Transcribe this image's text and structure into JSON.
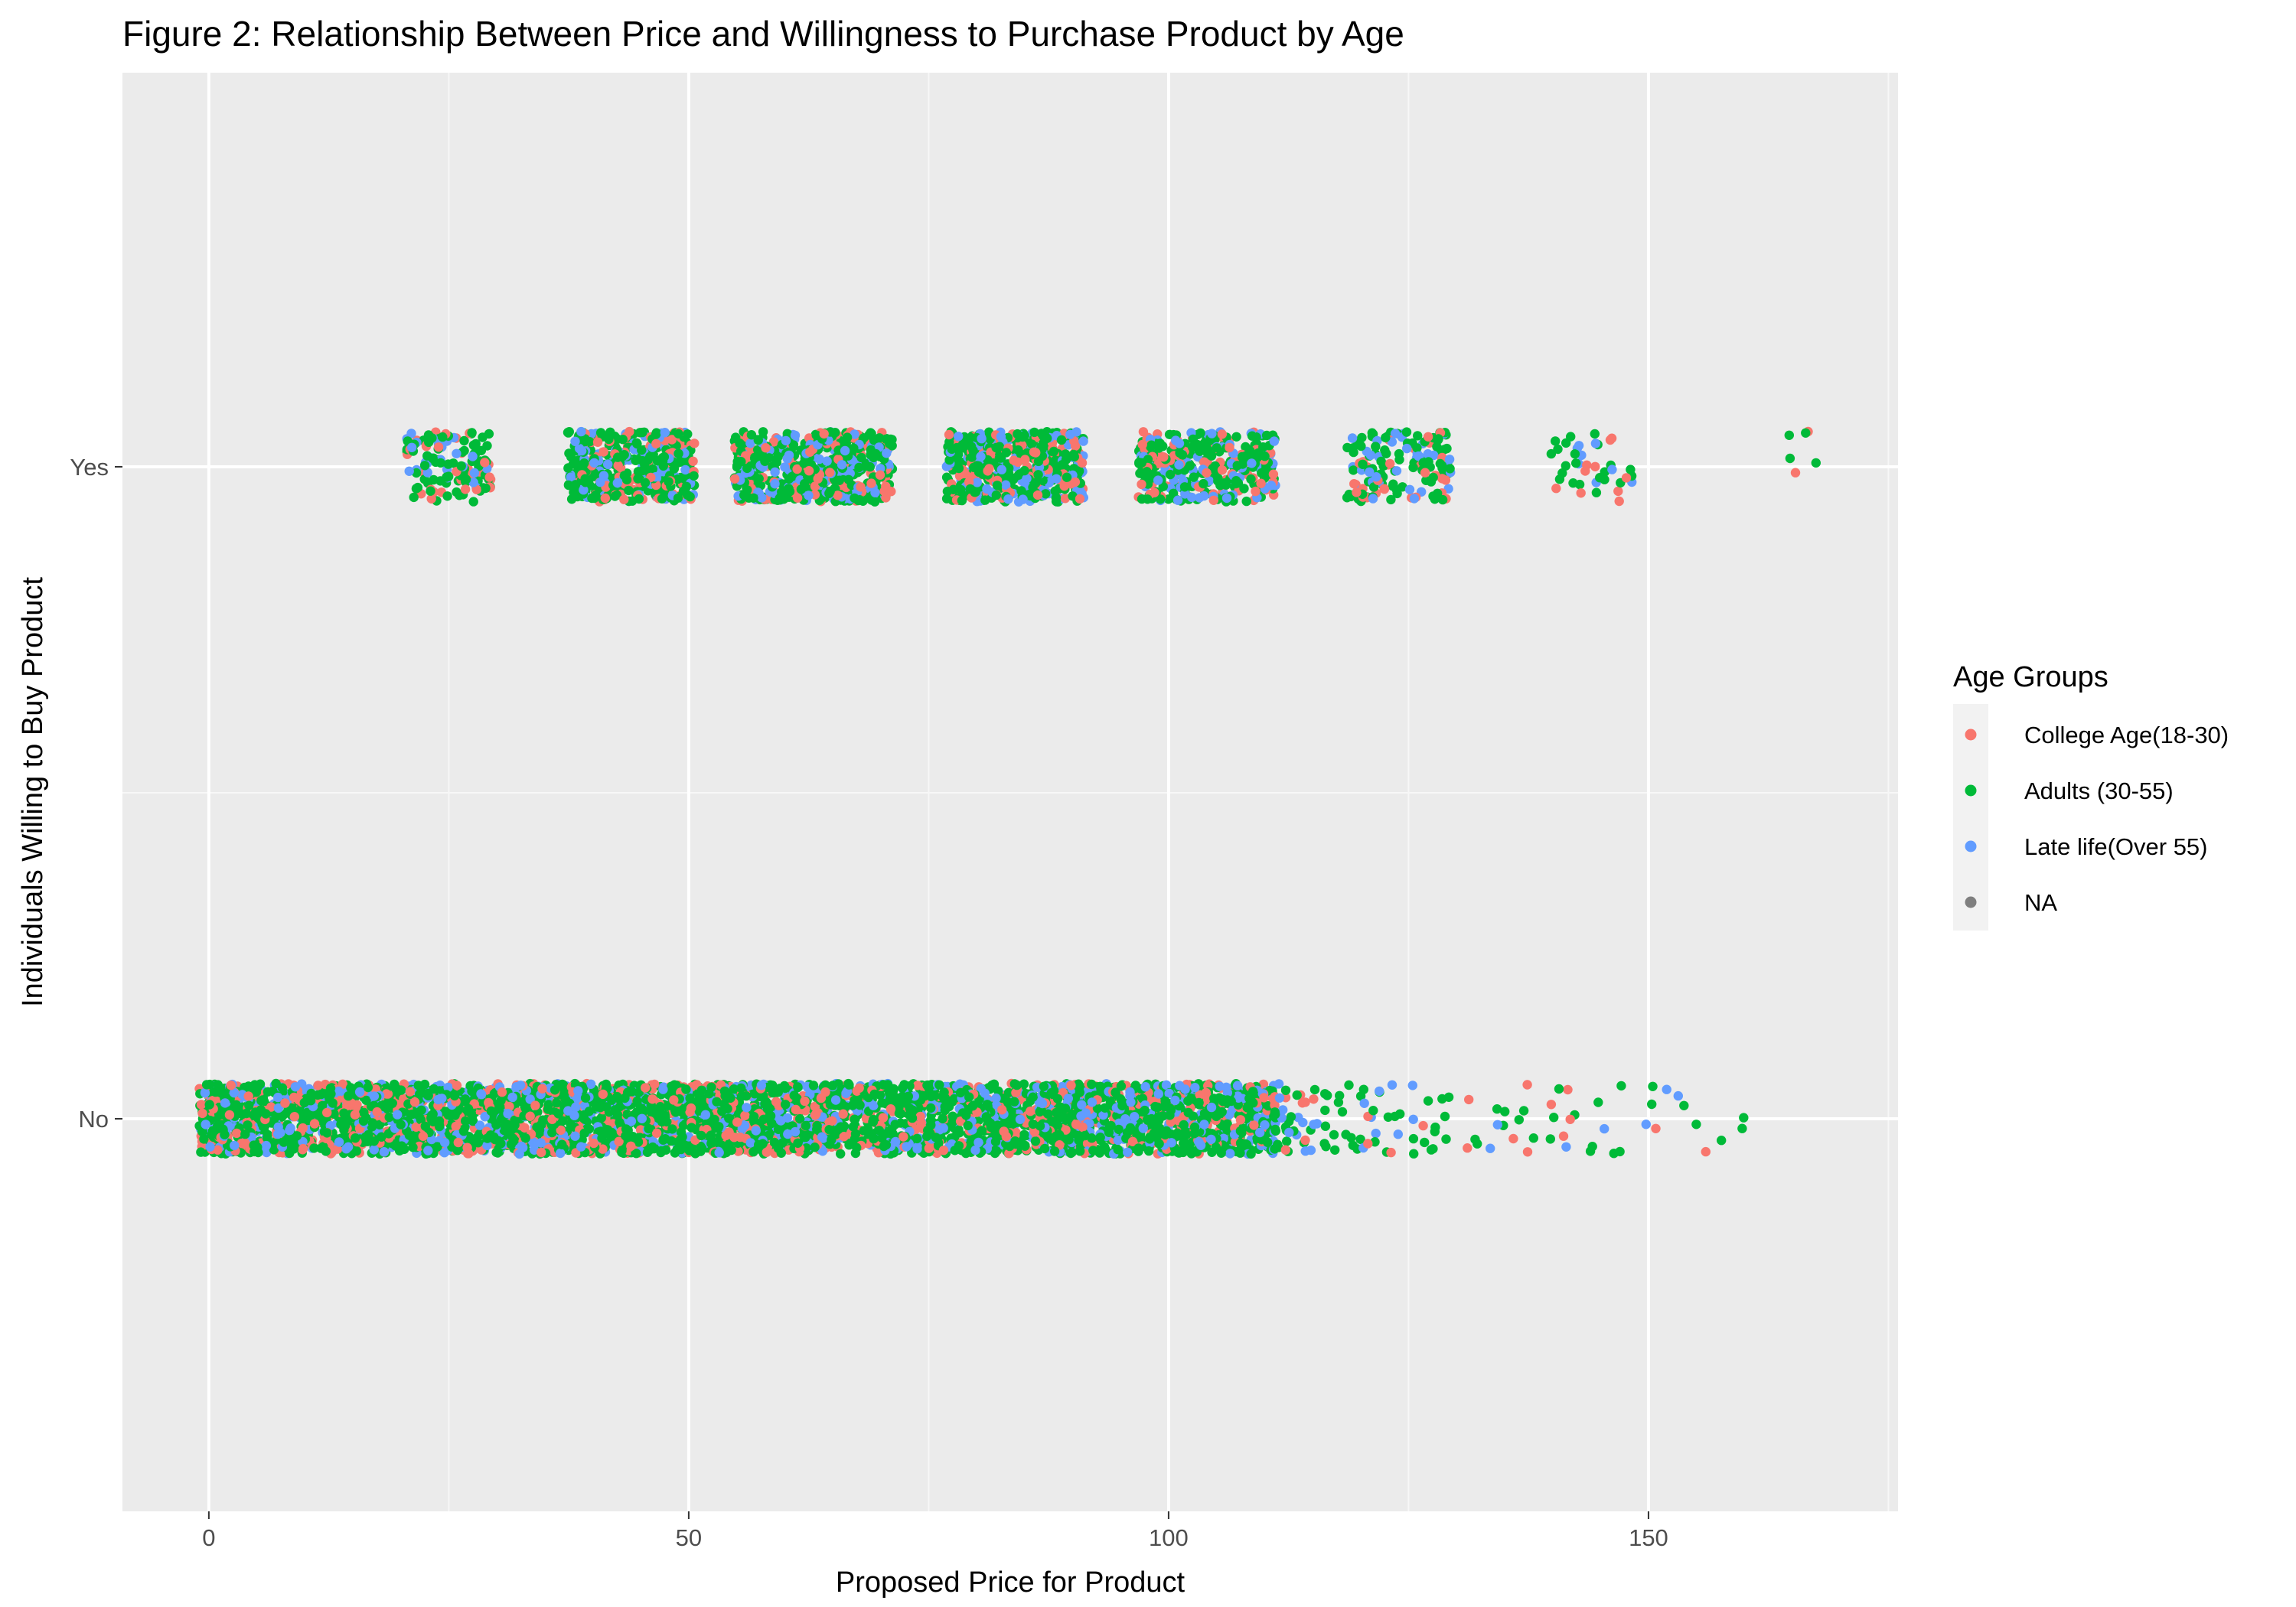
{
  "chart_data": {
    "type": "scatter",
    "title": "Figure 2: Relationship Between Price and Willingness to Purchase Product by Age",
    "xlabel": "Proposed Price for Product",
    "ylabel": "Individuals Willing to Buy Product",
    "xlim": [
      -9,
      176
    ],
    "xticks": [
      0,
      50,
      100,
      150
    ],
    "yticks": [
      "Yes",
      "No"
    ],
    "categories": [
      "No",
      "Yes"
    ],
    "grid": true,
    "jitter": true,
    "legend": {
      "title": "Age Groups",
      "position": "right",
      "entries": [
        {
          "label": "College Age(18-30)",
          "color": "#F8766D"
        },
        {
          "label": "Adults (30-55)",
          "color": "#00BA38"
        },
        {
          "label": "Late life(Over 55)",
          "color": "#619CFF"
        },
        {
          "label": "NA",
          "color": "#7F7F7F"
        }
      ]
    },
    "series": [
      {
        "name": "Yes",
        "y": "Yes",
        "x_clusters": [
          {
            "center": 25,
            "spread": 8,
            "count": 140
          },
          {
            "center": 44,
            "spread": 12,
            "count": 420
          },
          {
            "center": 63,
            "spread": 15,
            "count": 560
          },
          {
            "center": 84,
            "spread": 13,
            "count": 500
          },
          {
            "center": 104,
            "spread": 13,
            "count": 360
          },
          {
            "center": 124,
            "spread": 10,
            "count": 160
          },
          {
            "center": 144,
            "spread": 8,
            "count": 40
          },
          {
            "center": 166,
            "spread": 3,
            "count": 6
          }
        ]
      },
      {
        "name": "No",
        "y": "No",
        "x_range": [
          -1,
          111
        ],
        "count": 4200,
        "x_tail": [
          111,
          161
        ],
        "tail_count": 140
      }
    ]
  }
}
